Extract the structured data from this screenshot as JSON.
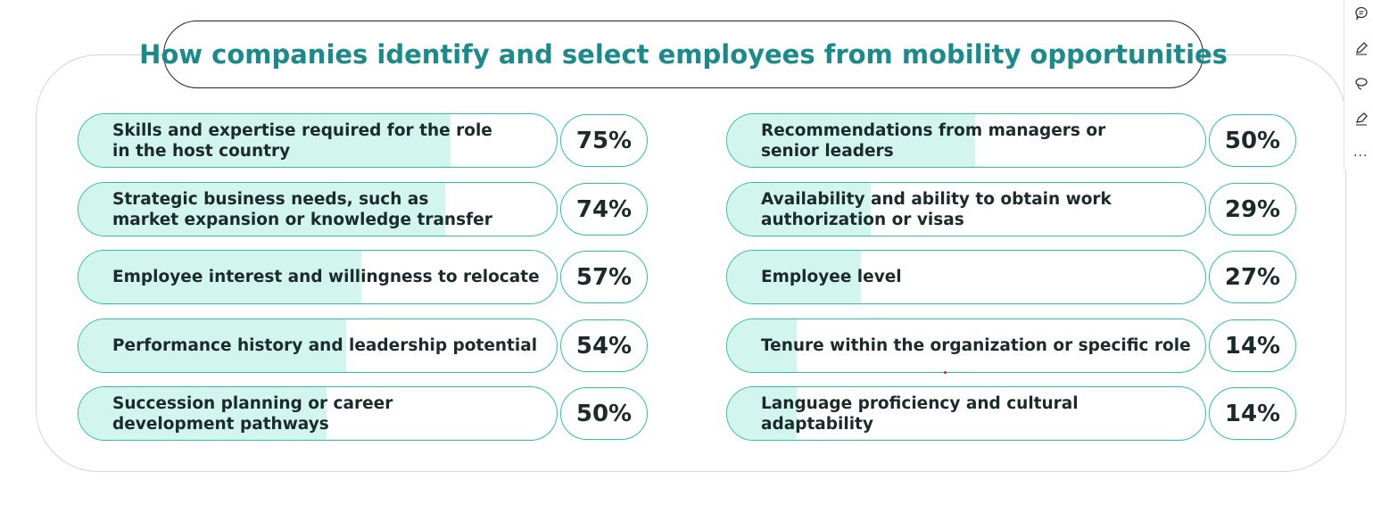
{
  "colors": {
    "title": "#1a8a8a",
    "bar_border": "#2fc1a6",
    "bar_fill": "#d2f5ee",
    "text": "#1b2b2b"
  },
  "chart_data": {
    "type": "bar",
    "title": "How companies identify and select employees from mobility opportunities",
    "unit": "%",
    "left": [
      {
        "label_lines": [
          "Skills and expertise required for the role",
          "in the host country"
        ],
        "value": 75,
        "display": "75%"
      },
      {
        "label_lines": [
          "Strategic business needs, such as",
          "market expansion or knowledge transfer"
        ],
        "value": 74,
        "display": "74%"
      },
      {
        "label_lines": [
          "Employee interest and willingness to relocate"
        ],
        "value": 57,
        "display": "57%"
      },
      {
        "label_lines": [
          "Performance history and leadership potential"
        ],
        "value": 54,
        "display": "54%"
      },
      {
        "label_lines": [
          "Succession planning or career",
          "development pathways"
        ],
        "value": 50,
        "display": "50%"
      }
    ],
    "right": [
      {
        "label_lines": [
          "Recommendations from managers or",
          "senior leaders"
        ],
        "value": 50,
        "display": "50%"
      },
      {
        "label_lines": [
          "Availability and ability to obtain work",
          "authorization or visas"
        ],
        "value": 29,
        "display": "29%"
      },
      {
        "label_lines": [
          "Employee level"
        ],
        "value": 27,
        "display": "27%"
      },
      {
        "label_lines": [
          "Tenure within the organization or specific role"
        ],
        "value": 14,
        "display": "14%"
      },
      {
        "label_lines": [
          "Language proficiency and cultural adaptability"
        ],
        "value": 14,
        "display": "14%"
      }
    ]
  },
  "toolbar": {
    "icons": [
      "comment-icon",
      "pen-icon",
      "lasso-icon",
      "highlighter-icon"
    ],
    "more_label": "..."
  }
}
